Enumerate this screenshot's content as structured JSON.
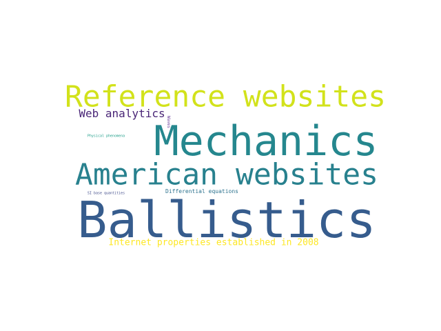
{
  "words": [
    {
      "text": "Reference websites",
      "color": "#d2e21b"
    },
    {
      "text": "Mechanics",
      "color": "#25878e"
    },
    {
      "text": "American websites",
      "color": "#28818e"
    },
    {
      "text": "Ballistics",
      "color": "#365c8d"
    },
    {
      "text": "Web analytics",
      "color": "#482476"
    },
    {
      "text": "Internet properties established in 2008",
      "color": "#fde725"
    },
    {
      "text": "Differential equations",
      "color": "#2c728e"
    },
    {
      "text": "Physical phenomena",
      "color": "#1f9e89"
    },
    {
      "text": "SI base quantities",
      "color": "#3e4a89"
    },
    {
      "text": "Waves",
      "color": "#6a3d9a"
    }
  ]
}
